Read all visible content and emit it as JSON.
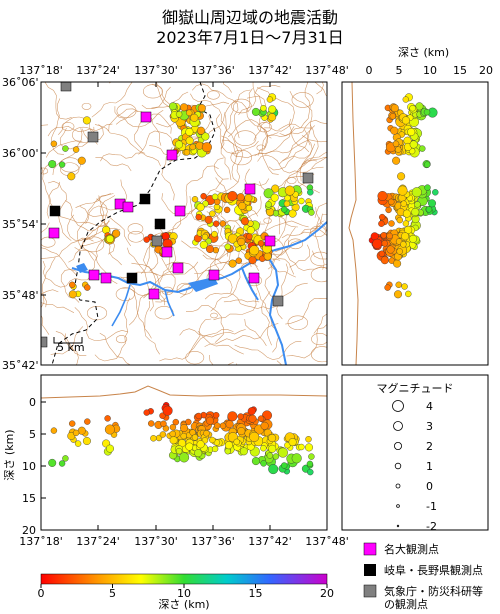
{
  "title_line1": "御嶽山周辺域の地震活動",
  "title_line2": "2023年7月1日～7月31日",
  "map": {
    "lon_ticks": [
      "137˚18'",
      "137˚24'",
      "137˚30'",
      "137˚36'",
      "137˚42'",
      "137˚48'"
    ],
    "lat_ticks": [
      "36˚06'",
      "36˚00'",
      "35˚54'",
      "35˚48'",
      "35˚42'"
    ],
    "scale_label": "5 km"
  },
  "depth_section": {
    "axis_label": "深さ (km)",
    "depth_ticks": [
      "0",
      "5",
      "10",
      "15",
      "20"
    ],
    "lon_ticks": [
      "137˚18'",
      "137˚24'",
      "137˚30'",
      "137˚36'",
      "137˚42'",
      "137˚48'"
    ]
  },
  "lat_depth_section": {
    "axis_label": "深さ (km)",
    "depth_ticks": [
      "0",
      "5",
      "10",
      "15",
      "20"
    ]
  },
  "magnitude_legend": {
    "title": "マグニチュード",
    "levels": [
      "4",
      "3",
      "2",
      "1",
      "0",
      "-1",
      "-2"
    ]
  },
  "station_legend": [
    {
      "label": "名大観測点",
      "color": "#ff00ff"
    },
    {
      "label": "岐阜・長野県観測点",
      "color": "#000000"
    },
    {
      "label": "気象庁・防災科研等",
      "label2": "の観測点",
      "color": "#808080"
    }
  ],
  "colorbar": {
    "label": "深さ (km)",
    "ticks": [
      "0",
      "5",
      "10",
      "15",
      "20"
    ]
  },
  "colors": {
    "topo": "#c8844a",
    "river": "#3c8cf0",
    "border": "#000000"
  }
}
